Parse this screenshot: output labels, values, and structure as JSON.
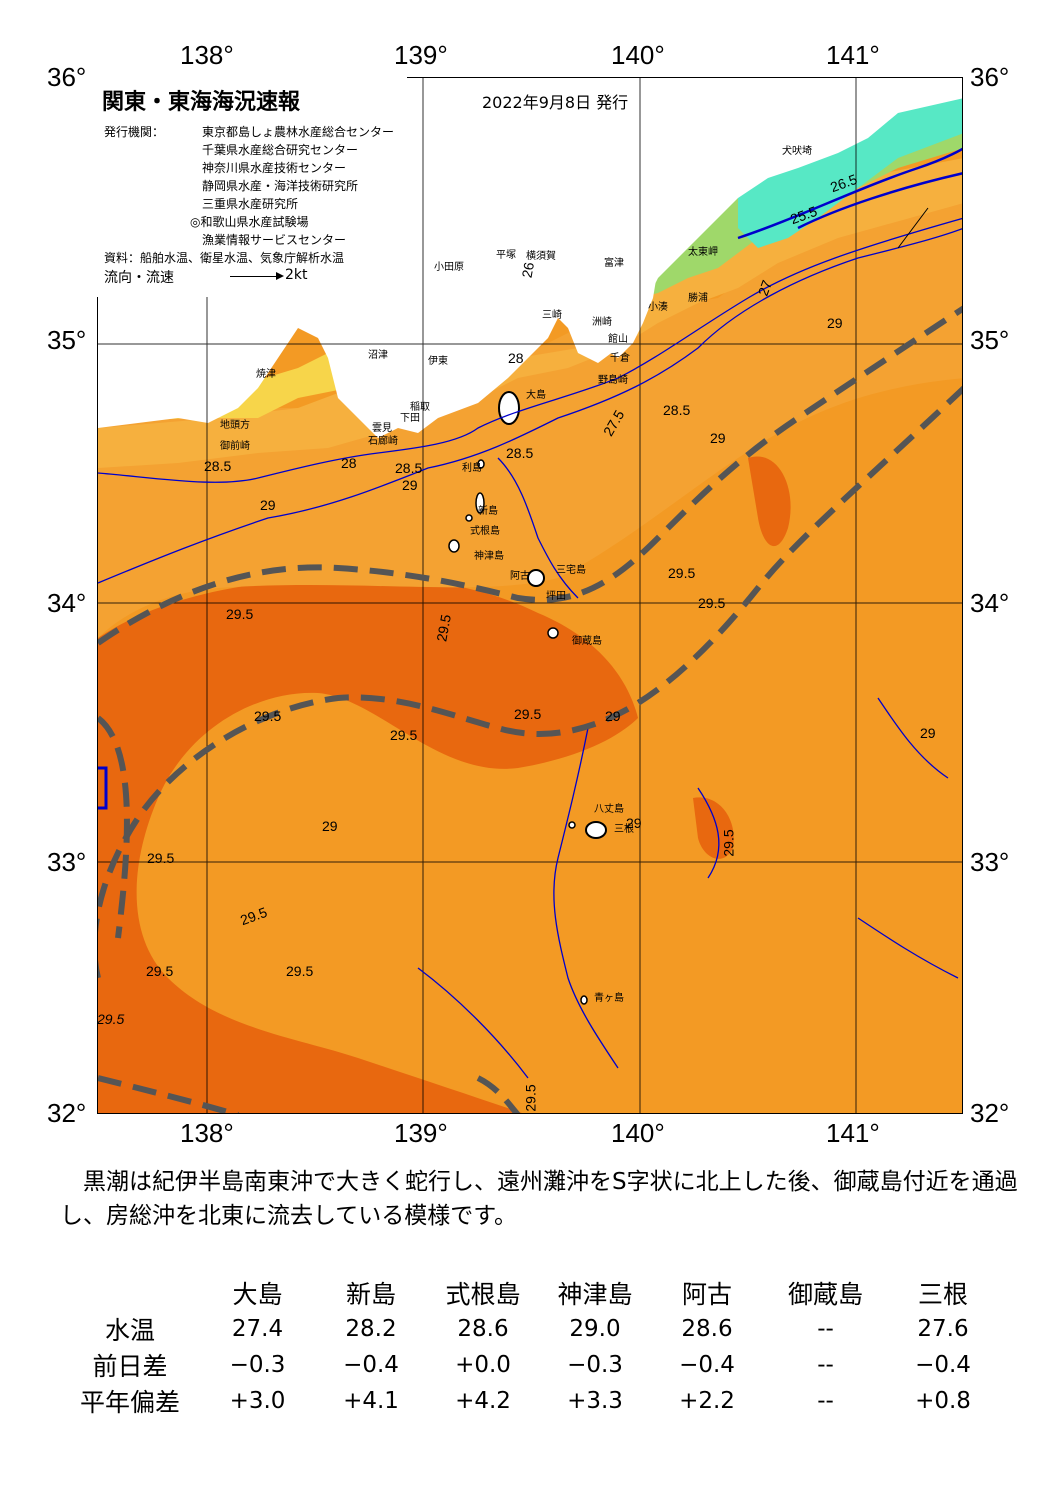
{
  "map": {
    "title": "関東・東海海況速報",
    "issue_date": "2022年9月8日 発行",
    "issuer_label": "発行機関：",
    "institutions": [
      "東京都島しょ農林水産総合センター",
      "千葉県水産総合研究センター",
      "神奈川県水産技術センター",
      "静岡県水産・海洋技術研究所",
      "三重県水産研究所",
      "◎和歌山県水産試験場",
      "漁業情報サービスセンター"
    ],
    "source": "資料：船舶水温、衛星水温、気象庁解析水温",
    "flow_label": "流向・流速",
    "flow_scale": "2kt",
    "lon_ticks": [
      "138°",
      "139°",
      "140°",
      "141°"
    ],
    "lat_ticks": [
      "36°",
      "35°",
      "34°",
      "33°",
      "32°"
    ],
    "place_names": [
      "犬吠埼",
      "太東岬",
      "勝浦",
      "小湊",
      "館山",
      "千倉",
      "野島崎",
      "富津",
      "横須賀",
      "平塚",
      "小田原",
      "三崎",
      "洲崎",
      "沼津",
      "伊東",
      "稲取",
      "下田",
      "石廊崎",
      "雲見",
      "焼津",
      "御前崎",
      "地頭方",
      "大島",
      "利島",
      "新島",
      "式根島",
      "神津島",
      "三宅島",
      "阿古",
      "坪田",
      "御蔵島",
      "八丈島",
      "三根",
      "青ヶ島"
    ],
    "isotherm_labels": [
      "25.5",
      "26",
      "26.5",
      "27",
      "27.5",
      "28",
      "28.5",
      "29",
      "29.5"
    ],
    "colors": {
      "warm_core": "#e8680f",
      "warm": "#f39a24",
      "mid_orange": "#f6b03e",
      "yellow": "#f7d54a",
      "light_yellow": "#eeea70",
      "green": "#9fd86a",
      "cyan": "#57e8c5",
      "kuroshio_axis": "#555555",
      "land": "#ffffff",
      "contour": "#0000cc"
    }
  },
  "summary": "黒潮は紀伊半島南東沖で大きく蛇行し、遠州灘沖をS字状に北上した後、御蔵島付近を通過し、房総沖を北東に流去している模様です。",
  "table": {
    "columns": [
      "大島",
      "新島",
      "式根島",
      "神津島",
      "阿古",
      "御蔵島",
      "三根"
    ],
    "rows": [
      {
        "label": "水温",
        "values": [
          "27.4",
          "28.2",
          "28.6",
          "29.0",
          "28.6",
          "--",
          "27.6"
        ]
      },
      {
        "label": "前日差",
        "values": [
          "−0.3",
          "−0.4",
          "+0.0",
          "−0.3",
          "−0.4",
          "--",
          "−0.4"
        ]
      },
      {
        "label": "平年偏差",
        "values": [
          "+3.0",
          "+4.1",
          "+4.2",
          "+3.3",
          "+2.2",
          "--",
          "+0.8"
        ]
      }
    ]
  }
}
